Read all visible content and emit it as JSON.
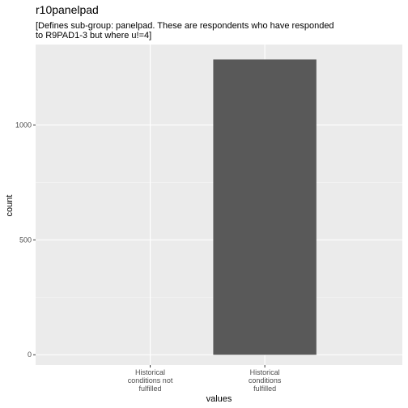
{
  "chart_data": {
    "type": "bar",
    "title": "r10panelpad",
    "subtitle": [
      "[Defines sub-group: panelpad. These are respondents who have responded",
      "to R9PAD1-3 but where u!=4]"
    ],
    "xlabel": "values",
    "ylabel": "count",
    "categories": [
      [
        "Historical",
        "conditions not",
        "fulfilled"
      ],
      [
        "Historical",
        "conditions",
        "fulfilled"
      ]
    ],
    "values": [
      0,
      1285
    ],
    "ylim": [
      -45,
      1350
    ],
    "yticks": [
      0,
      500,
      1000
    ],
    "grid": true,
    "colors": {
      "panel": "#ebebeb",
      "grid_major": "#ffffff",
      "grid_minor": "#f5f5f5",
      "bar": "#595959",
      "tick": "#333333"
    }
  }
}
